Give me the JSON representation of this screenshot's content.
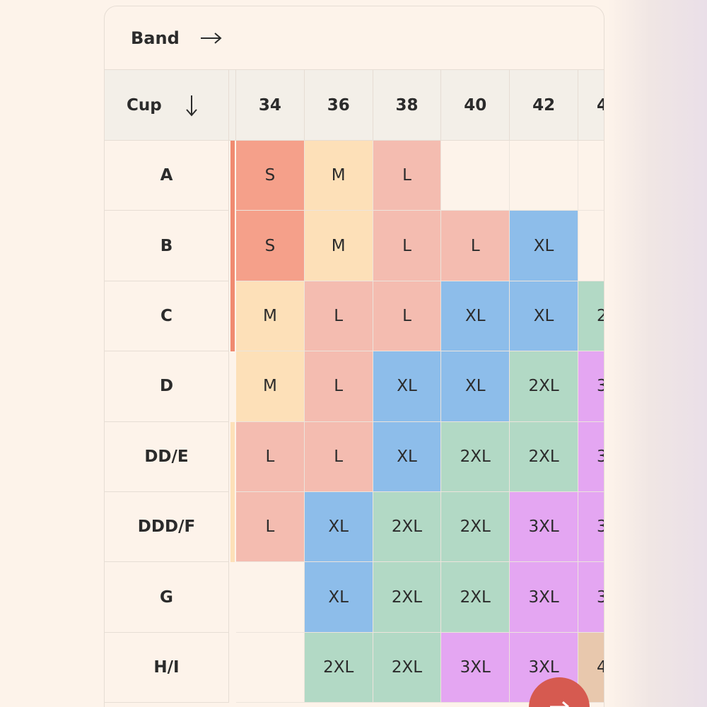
{
  "header": {
    "title": "Band"
  },
  "table": {
    "corner": "Cup",
    "columns": [
      "34",
      "36",
      "38",
      "40",
      "42",
      "4"
    ],
    "rows": [
      {
        "label": "A",
        "cells": [
          {
            "text": "S",
            "color": "#f5a08a"
          },
          {
            "text": "M",
            "color": "#fde0b8"
          },
          {
            "text": "L",
            "color": "#f4bcb0"
          },
          null,
          null,
          null
        ]
      },
      {
        "label": "B",
        "cells": [
          {
            "text": "S",
            "color": "#f5a08a"
          },
          {
            "text": "M",
            "color": "#fde0b8"
          },
          {
            "text": "L",
            "color": "#f4bcb0"
          },
          {
            "text": "L",
            "color": "#f4bcb0"
          },
          {
            "text": "XL",
            "color": "#8dbdea"
          },
          null
        ]
      },
      {
        "label": "C",
        "cells": [
          {
            "text": "M",
            "color": "#fde0b8"
          },
          {
            "text": "L",
            "color": "#f4bcb0"
          },
          {
            "text": "L",
            "color": "#f4bcb0"
          },
          {
            "text": "XL",
            "color": "#8dbdea"
          },
          {
            "text": "XL",
            "color": "#8dbdea"
          },
          {
            "text": "2",
            "color": "#b2d9c5"
          }
        ]
      },
      {
        "label": "D",
        "cells": [
          {
            "text": "M",
            "color": "#fde0b8"
          },
          {
            "text": "L",
            "color": "#f4bcb0"
          },
          {
            "text": "XL",
            "color": "#8dbdea"
          },
          {
            "text": "XL",
            "color": "#8dbdea"
          },
          {
            "text": "2XL",
            "color": "#b2d9c5"
          },
          {
            "text": "3",
            "color": "#e4a6f2"
          }
        ]
      },
      {
        "label": "DD/E",
        "cells": [
          {
            "text": "L",
            "color": "#f4bcb0"
          },
          {
            "text": "L",
            "color": "#f4bcb0"
          },
          {
            "text": "XL",
            "color": "#8dbdea"
          },
          {
            "text": "2XL",
            "color": "#b2d9c5"
          },
          {
            "text": "2XL",
            "color": "#b2d9c5"
          },
          {
            "text": "3",
            "color": "#e4a6f2"
          }
        ]
      },
      {
        "label": "DDD/F",
        "cells": [
          {
            "text": "L",
            "color": "#f4bcb0"
          },
          {
            "text": "XL",
            "color": "#8dbdea"
          },
          {
            "text": "2XL",
            "color": "#b2d9c5"
          },
          {
            "text": "2XL",
            "color": "#b2d9c5"
          },
          {
            "text": "3XL",
            "color": "#e4a6f2"
          },
          {
            "text": "3",
            "color": "#e4a6f2"
          }
        ]
      },
      {
        "label": "G",
        "cells": [
          null,
          {
            "text": "XL",
            "color": "#8dbdea"
          },
          {
            "text": "2XL",
            "color": "#b2d9c5"
          },
          {
            "text": "2XL",
            "color": "#b2d9c5"
          },
          {
            "text": "3XL",
            "color": "#e4a6f2"
          },
          {
            "text": "3",
            "color": "#e4a6f2"
          }
        ]
      },
      {
        "label": "H/I",
        "cells": [
          null,
          {
            "text": "2XL",
            "color": "#b2d9c5"
          },
          {
            "text": "2XL",
            "color": "#b2d9c5"
          },
          {
            "text": "3XL",
            "color": "#e4a6f2"
          },
          {
            "text": "3XL",
            "color": "#e4a6f2"
          },
          {
            "text": "4",
            "color": "#e8c8ad"
          }
        ]
      }
    ]
  }
}
